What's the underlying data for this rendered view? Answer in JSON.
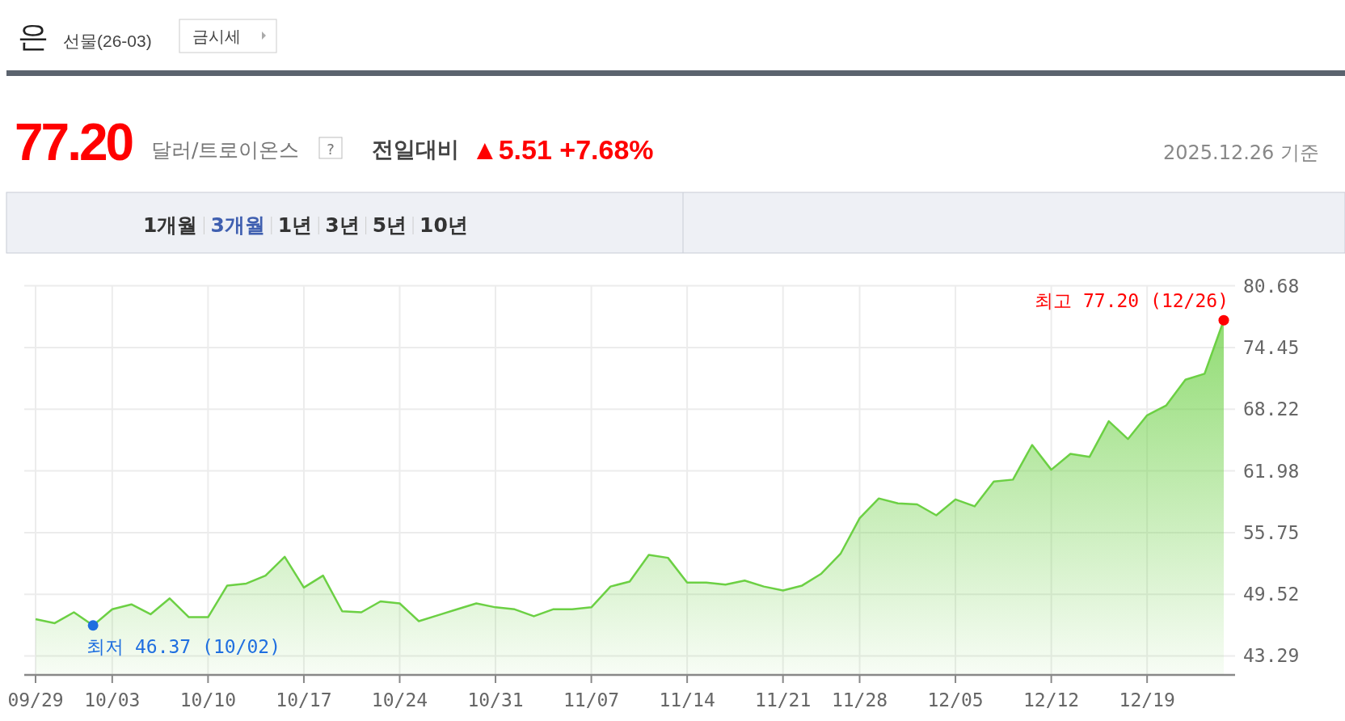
{
  "chart_data": {
    "type": "area",
    "title": "은",
    "subtitle": "선물(26-03)",
    "annotations": [
      "금시세",
      "77.20",
      "달러/트로이온스",
      "?",
      "전일대비",
      "▲5.51 +7.68%",
      "1개월",
      "3개월",
      "1년",
      "3년",
      "5년",
      "10년",
      "2025.12.26 기준"
    ],
    "categories": [
      "09/29",
      null,
      null,
      null,
      "10/03",
      null,
      null,
      null,
      null,
      "10/10",
      null,
      null,
      null,
      null,
      "10/17",
      null,
      null,
      null,
      null,
      "10/24",
      null,
      null,
      null,
      null,
      "10/31",
      null,
      null,
      null,
      null,
      "11/07",
      null,
      null,
      null,
      null,
      "11/14",
      null,
      null,
      null,
      null,
      "11/21",
      null,
      null,
      null,
      "11/28",
      null,
      null,
      null,
      null,
      "12/05",
      null,
      null,
      null,
      null,
      "12/12",
      null,
      null,
      null,
      null,
      "12/19",
      null,
      null,
      null,
      null
    ],
    "series": [
      {
        "color": "#6cd044",
        "values": [
          47.0,
          46.6,
          47.7,
          46.37,
          48.0,
          48.5,
          47.5,
          49.1,
          47.2,
          47.2,
          50.4,
          50.6,
          51.4,
          53.3,
          50.2,
          51.4,
          47.8,
          47.7,
          48.8,
          48.6,
          46.8,
          47.4,
          48.0,
          48.6,
          48.2,
          48.0,
          47.3,
          48.0,
          48.0,
          48.2,
          50.3,
          50.8,
          53.5,
          53.2,
          50.7,
          50.7,
          50.5,
          50.9,
          50.3,
          49.9,
          50.4,
          51.6,
          53.6,
          57.2,
          59.2,
          58.7,
          58.6,
          57.5,
          59.1,
          58.4,
          60.9,
          61.1,
          64.6,
          62.1,
          63.7,
          63.4,
          67.0,
          65.2,
          67.6,
          68.6,
          71.2,
          71.8,
          77.2
        ]
      },
      {
        "type": "scatter",
        "values": [
          null,
          null,
          null,
          46.37,
          null,
          null,
          null,
          null,
          null,
          null,
          null,
          null,
          null,
          null,
          null,
          null,
          null,
          null,
          null,
          null,
          null,
          null,
          null,
          null,
          null,
          null,
          null,
          null,
          null,
          null,
          null,
          null,
          null,
          null,
          null,
          null,
          null,
          null,
          null,
          null,
          null,
          null,
          null,
          null,
          null,
          null,
          null,
          null,
          null,
          null,
          null,
          null,
          null,
          null,
          null,
          null,
          null,
          null,
          null,
          null,
          null,
          null,
          77.2
        ],
        "colors": [
          null,
          null,
          null,
          "#1f6fe0",
          null,
          null,
          null,
          null,
          null,
          null,
          null,
          null,
          null,
          null,
          null,
          null,
          null,
          null,
          null,
          null,
          null,
          null,
          null,
          null,
          null,
          null,
          null,
          null,
          null,
          null,
          null,
          null,
          null,
          null,
          null,
          null,
          null,
          null,
          null,
          null,
          null,
          null,
          null,
          null,
          null,
          null,
          null,
          null,
          null,
          null,
          null,
          null,
          null,
          null,
          null,
          null,
          null,
          null,
          null,
          null,
          null,
          null,
          "#ff0000"
        ],
        "value_labels": [
          null,
          null,
          null,
          "최저 46.37 (10/02)",
          null,
          null,
          null,
          null,
          null,
          null,
          null,
          null,
          null,
          null,
          null,
          null,
          null,
          null,
          null,
          null,
          null,
          null,
          null,
          null,
          null,
          null,
          null,
          null,
          null,
          null,
          null,
          null,
          null,
          null,
          null,
          null,
          null,
          null,
          null,
          null,
          null,
          null,
          null,
          null,
          null,
          null,
          null,
          null,
          null,
          null,
          null,
          null,
          null,
          null,
          null,
          null,
          null,
          null,
          null,
          null,
          null,
          null,
          "최고 77.20 (12/26)"
        ]
      }
    ],
    "ylim": [
      41.37,
      80.68
    ],
    "yticks": [
      43.29,
      49.52,
      55.75,
      61.98,
      68.22,
      74.45,
      80.68
    ],
    "grid": true
  }
}
